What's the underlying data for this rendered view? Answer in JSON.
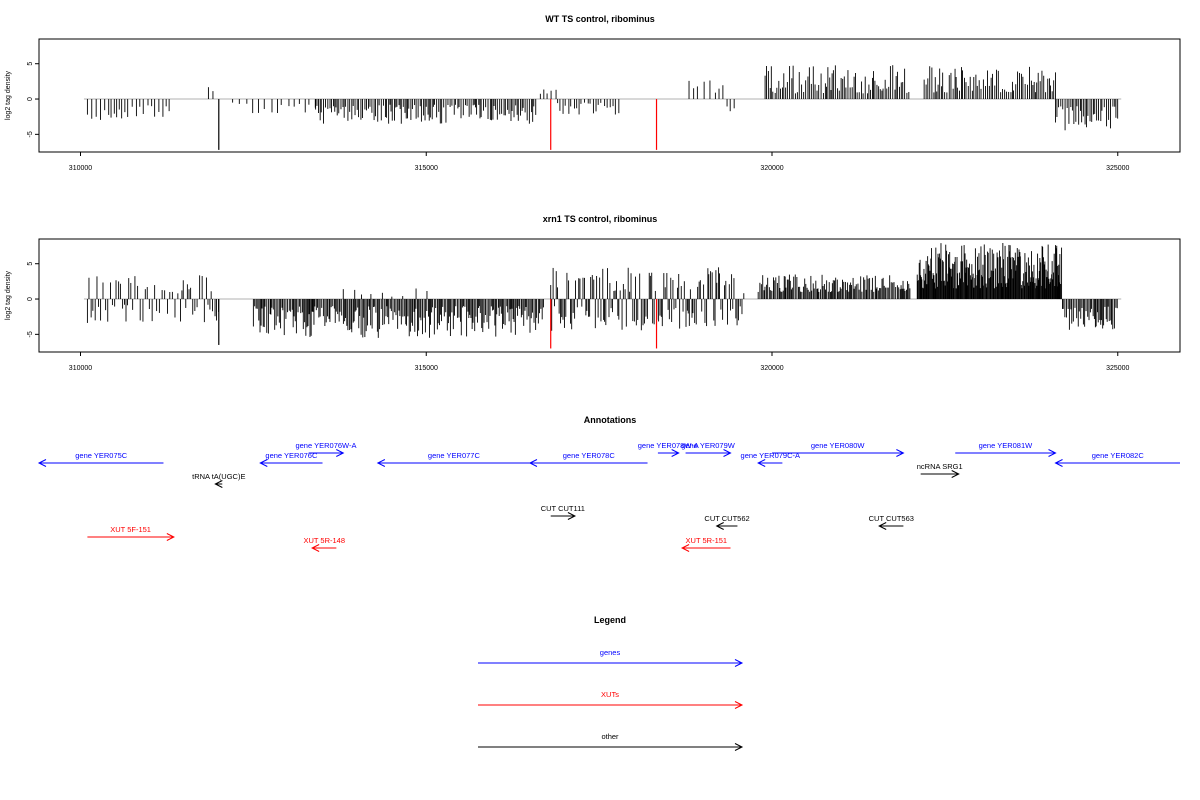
{
  "colors": {
    "axis": "#000000",
    "zero": "#999999",
    "bar": "#000000",
    "highlight": "#ff0000",
    "genes": "#0000ff",
    "xuts": "#ff0000",
    "other": "#000000"
  },
  "chart_data": [
    {
      "type": "bar",
      "title": "WT TS control, ribominus",
      "ylabel": "log2 tag density",
      "xlim": [
        309400,
        325900
      ],
      "ylim": [
        -7.5,
        8.5
      ],
      "xticks": [
        310000,
        315000,
        320000,
        325000
      ],
      "xtick_labels": [
        "310000",
        "315000",
        "320000",
        "325000"
      ],
      "yticks": [
        -5,
        0,
        5
      ],
      "ytick_labels": [
        "-5",
        "0",
        "5"
      ],
      "grid": false,
      "series": [
        {
          "kind": "signal",
          "segments": [
            {
              "from": 310100,
              "to": 311300,
              "min": -3.0,
              "max": -0.8,
              "step": 50,
              "sign": -1
            },
            {
              "from": 311850,
              "to": 311950,
              "min": 1.0,
              "max": 1.8,
              "step": 50,
              "sign": 1
            },
            {
              "from": 312200,
              "to": 313400,
              "min": -2.0,
              "max": -0.5,
              "step": 80,
              "sign": -1
            },
            {
              "from": 313400,
              "to": 316600,
              "min": -3.5,
              "max": -0.8,
              "step": 25,
              "sign": -1
            },
            {
              "from": 316650,
              "to": 316900,
              "min": 0.5,
              "max": 1.5,
              "step": 60,
              "sign": 1
            },
            {
              "from": 316900,
              "to": 317800,
              "min": -2.5,
              "max": -0.5,
              "step": 40,
              "sign": -1
            },
            {
              "from": 318800,
              "to": 319300,
              "min": 0.8,
              "max": 3.0,
              "step": 70,
              "sign": 1
            },
            {
              "from": 319350,
              "to": 319500,
              "min": -2.0,
              "max": -1.0,
              "step": 60,
              "sign": -1
            },
            {
              "from": 319900,
              "to": 322000,
              "min": 0.8,
              "max": 4.8,
              "step": 25,
              "sign": 1
            },
            {
              "from": 322200,
              "to": 324100,
              "min": 0.8,
              "max": 4.8,
              "step": 25,
              "sign": 1
            },
            {
              "from": 324100,
              "to": 325000,
              "min": -4.5,
              "max": -1.0,
              "step": 25,
              "sign": -1
            }
          ]
        },
        {
          "kind": "spikes",
          "points": [
            {
              "x": 312000,
              "y": -7.2,
              "highlight": false
            },
            {
              "x": 316800,
              "y": -7.2,
              "highlight": true
            },
            {
              "x": 318330,
              "y": -7.2,
              "highlight": true
            }
          ]
        }
      ]
    },
    {
      "type": "bar",
      "title": "xrn1 TS control, ribominus",
      "ylabel": "log2 tag density",
      "xlim": [
        309400,
        325900
      ],
      "ylim": [
        -7.5,
        8.5
      ],
      "xticks": [
        310000,
        315000,
        320000,
        325000
      ],
      "xtick_labels": [
        "310000",
        "315000",
        "320000",
        "325000"
      ],
      "yticks": [
        -5,
        0,
        5
      ],
      "ytick_labels": [
        "-5",
        "0",
        "5"
      ],
      "grid": false,
      "series": [
        {
          "kind": "signal",
          "segments": [
            {
              "from": 310100,
              "to": 312000,
              "min": -3.0,
              "max": 3.5,
              "step": 30,
              "sign": 0
            },
            {
              "from": 312500,
              "to": 316700,
              "min": -5.5,
              "max": -1.0,
              "step": 18,
              "sign": -1
            },
            {
              "from": 313800,
              "to": 315200,
              "min": 0.3,
              "max": 1.5,
              "step": 150,
              "sign": 1
            },
            {
              "from": 316800,
              "to": 319600,
              "min": -4.5,
              "max": 4.0,
              "step": 20,
              "sign": 0
            },
            {
              "from": 319800,
              "to": 322000,
              "min": 1.0,
              "max": 3.5,
              "step": 18,
              "sign": 1
            },
            {
              "from": 322100,
              "to": 324200,
              "min": 1.5,
              "max": 8.0,
              "step": 10,
              "sign": 1
            },
            {
              "from": 324200,
              "to": 325000,
              "min": -4.5,
              "max": -1.0,
              "step": 18,
              "sign": -1
            }
          ]
        },
        {
          "kind": "spikes",
          "points": [
            {
              "x": 312000,
              "y": -6.5,
              "highlight": false
            },
            {
              "x": 316800,
              "y": -7.0,
              "highlight": true
            },
            {
              "x": 318330,
              "y": -7.0,
              "highlight": true
            }
          ]
        }
      ]
    },
    {
      "type": "annotation_track",
      "title": "Annotations",
      "xlim": [
        309400,
        325900
      ],
      "features": [
        {
          "label": "gene YER075C",
          "start": 309400,
          "end": 311200,
          "strand": "-",
          "cat": "genes",
          "row": 1
        },
        {
          "label": "gene YER076W-A",
          "start": 313300,
          "end": 313800,
          "strand": "+",
          "cat": "genes",
          "row": 0
        },
        {
          "label": "gene YER076C",
          "start": 312600,
          "end": 313500,
          "strand": "-",
          "cat": "genes",
          "row": 1
        },
        {
          "label": "gene YER077C",
          "start": 314300,
          "end": 316500,
          "strand": "-",
          "cat": "genes",
          "row": 1
        },
        {
          "label": "gene YER078C",
          "start": 316500,
          "end": 318200,
          "strand": "-",
          "cat": "genes",
          "row": 1
        },
        {
          "label": "gene YER078W-A",
          "start": 318350,
          "end": 318650,
          "strand": "+",
          "cat": "genes",
          "row": 0
        },
        {
          "label": "gene YER079W",
          "start": 318750,
          "end": 319400,
          "strand": "+",
          "cat": "genes",
          "row": 0
        },
        {
          "label": "gene YER079C-A",
          "start": 319800,
          "end": 320150,
          "strand": "-",
          "cat": "genes",
          "row": 1
        },
        {
          "label": "gene YER080W",
          "start": 320000,
          "end": 321900,
          "strand": "+",
          "cat": "genes",
          "row": 0
        },
        {
          "label": "ncRNA SRG1",
          "start": 322150,
          "end": 322700,
          "strand": "+",
          "cat": "other",
          "row": 2
        },
        {
          "label": "gene YER081W",
          "start": 322650,
          "end": 324100,
          "strand": "+",
          "cat": "genes",
          "row": 0
        },
        {
          "label": "gene YER082C",
          "start": 324100,
          "end": 325900,
          "strand": "-",
          "cat": "genes",
          "row": 1
        },
        {
          "label": "tRNA tA(UGC)E",
          "start": 311950,
          "end": 312050,
          "strand": "-",
          "cat": "other",
          "row": 3
        },
        {
          "label": "CUT CUT111",
          "start": 316800,
          "end": 317150,
          "strand": "+",
          "cat": "other",
          "row": 4
        },
        {
          "label": "CUT CUT562",
          "start": 319200,
          "end": 319500,
          "strand": "-",
          "cat": "other",
          "row": 5
        },
        {
          "label": "CUT CUT563",
          "start": 321550,
          "end": 321900,
          "strand": "-",
          "cat": "other",
          "row": 5
        },
        {
          "label": "XUT 5F-151",
          "start": 310100,
          "end": 311350,
          "strand": "+",
          "cat": "xuts",
          "row": 6
        },
        {
          "label": "XUT 5R-148",
          "start": 313350,
          "end": 313700,
          "strand": "-",
          "cat": "xuts",
          "row": 7
        },
        {
          "label": "XUT 5R-151",
          "start": 318700,
          "end": 319400,
          "strand": "-",
          "cat": "xuts",
          "row": 7
        }
      ]
    }
  ],
  "legend": {
    "title": "Legend",
    "items": [
      {
        "label": "genes",
        "cat": "genes"
      },
      {
        "label": "XUTs",
        "cat": "xuts"
      },
      {
        "label": "other",
        "cat": "other"
      }
    ]
  }
}
